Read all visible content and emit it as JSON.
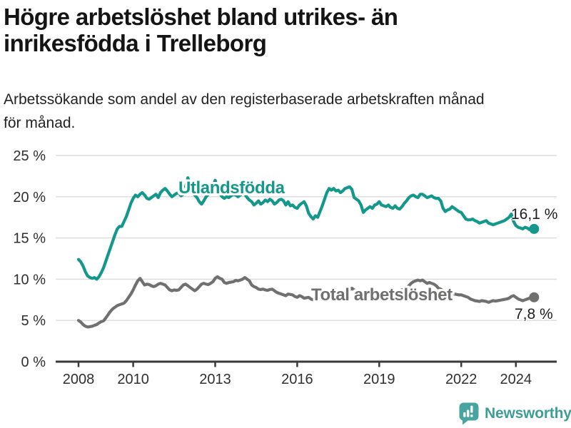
{
  "header": {
    "title_line1": "Högre arbetslöshet bland utrikes- än",
    "title_line2": "inrikesfödda i Trelleborg",
    "subtitle_line1": "Arbetssökande som andel av den registerbaserade arbetskraften månad",
    "subtitle_line2": "för månad."
  },
  "footer": {
    "brand_name": "Newsworthy"
  },
  "colors": {
    "teal": "#14988B",
    "gray": "#70706F",
    "grid": "#DBDBDB",
    "axis": "#3A3A3A",
    "tick_text": "#2F2F2F",
    "value_text": "#1D1D1D",
    "brand_teal": "#47A49F"
  },
  "chart_data": {
    "type": "line",
    "unit": "%",
    "grid": "horizontal",
    "legend": "inline-labels",
    "y_axis": {
      "range": [
        0,
        25
      ],
      "ticks": [
        {
          "value": 0,
          "label": "0 %"
        },
        {
          "value": 5,
          "label": "5 %"
        },
        {
          "value": 10,
          "label": "10 %"
        },
        {
          "value": 15,
          "label": "15 %"
        },
        {
          "value": 20,
          "label": "20 %"
        },
        {
          "value": 25,
          "label": "25 %"
        }
      ]
    },
    "x_axis": {
      "range": [
        2007.2,
        2025.5
      ],
      "ticks": [
        {
          "value": 2008,
          "label": "2008"
        },
        {
          "value": 2010,
          "label": "2010"
        },
        {
          "value": 2013,
          "label": "2013"
        },
        {
          "value": 2016,
          "label": "2016"
        },
        {
          "value": 2019,
          "label": "2019"
        },
        {
          "value": 2022,
          "label": "2022"
        },
        {
          "value": 2024,
          "label": "2024"
        }
      ]
    },
    "series": [
      {
        "name": "Utlandsfödda",
        "color": "#14988B",
        "end_value": 16.1,
        "end_label": "16,1 %",
        "start_year": 2008.0,
        "points_per_year": 12,
        "values": [
          12.4,
          12.1,
          11.6,
          10.9,
          10.4,
          10.2,
          10.1,
          10.2,
          10.0,
          10.3,
          10.8,
          11.4,
          12.2,
          13.0,
          13.8,
          14.6,
          15.4,
          16.1,
          16.4,
          16.4,
          17.0,
          17.6,
          18.4,
          19.2,
          19.8,
          20.2,
          20.0,
          20.3,
          20.5,
          20.2,
          19.8,
          19.7,
          19.9,
          20.1,
          20.3,
          19.9,
          20.5,
          20.8,
          21.0,
          20.7,
          20.3,
          20.0,
          20.2,
          20.4,
          20.5,
          20.1,
          20.3,
          21.2,
          22.3,
          21.4,
          20.6,
          20.2,
          19.9,
          19.4,
          19.1,
          19.5,
          20.0,
          20.3,
          20.6,
          21.3,
          22.0,
          21.2,
          20.4,
          20.0,
          19.8,
          20.0,
          19.9,
          20.1,
          20.3,
          20.2,
          20.0,
          20.2,
          20.4,
          20.3,
          19.9,
          19.6,
          19.4,
          19.0,
          19.2,
          19.5,
          19.1,
          19.3,
          19.6,
          19.4,
          19.7,
          19.5,
          19.1,
          19.3,
          19.6,
          19.7,
          19.5,
          19.0,
          19.4,
          18.9,
          19.0,
          18.7,
          18.6,
          19.0,
          19.2,
          19.4,
          18.9,
          18.0,
          17.6,
          17.3,
          17.7,
          17.5,
          18.2,
          18.9,
          19.7,
          20.5,
          21.0,
          20.8,
          21.0,
          20.7,
          20.8,
          20.5,
          20.7,
          21.0,
          21.1,
          21.2,
          20.9,
          19.9,
          19.7,
          19.5,
          19.0,
          18.1,
          18.4,
          18.6,
          18.8,
          18.6,
          19.0,
          19.1,
          19.4,
          19.0,
          18.9,
          18.8,
          19.0,
          18.7,
          18.6,
          18.9,
          18.6,
          18.5,
          18.8,
          19.2,
          19.5,
          19.9,
          20.1,
          20.2,
          20.0,
          19.9,
          20.3,
          20.3,
          20.1,
          19.9,
          20.0,
          20.1,
          19.9,
          19.8,
          19.8,
          19.5,
          18.6,
          18.2,
          18.4,
          18.5,
          18.8,
          18.6,
          18.4,
          18.2,
          18.1,
          17.7,
          17.3,
          17.2,
          17.2,
          17.3,
          17.1,
          17.0,
          16.8,
          16.9,
          17.0,
          17.1,
          16.8,
          16.7,
          16.6,
          16.7,
          16.8,
          16.9,
          17.0,
          17.1,
          17.3,
          17.5,
          17.9,
          17.0,
          16.5,
          16.3,
          16.2,
          16.1,
          16.3,
          16.2,
          16.0,
          16.05,
          16.1
        ]
      },
      {
        "name": "Total arbetslöshet",
        "color": "#70706F",
        "end_value": 7.8,
        "end_label": "7,8 %",
        "start_year": 2008.0,
        "points_per_year": 12,
        "values": [
          5.0,
          4.8,
          4.5,
          4.3,
          4.2,
          4.25,
          4.3,
          4.4,
          4.5,
          4.7,
          4.85,
          4.95,
          5.3,
          5.7,
          6.1,
          6.4,
          6.6,
          6.8,
          6.9,
          7.0,
          7.1,
          7.4,
          7.8,
          8.2,
          8.7,
          9.3,
          9.8,
          10.1,
          9.7,
          9.3,
          9.4,
          9.35,
          9.2,
          9.1,
          9.2,
          9.4,
          9.5,
          9.4,
          9.3,
          9.0,
          8.7,
          8.6,
          8.7,
          8.65,
          8.7,
          9.0,
          9.3,
          9.4,
          9.2,
          9.0,
          8.8,
          8.6,
          8.8,
          9.1,
          9.4,
          9.5,
          9.4,
          9.35,
          9.5,
          9.7,
          10.1,
          10.3,
          10.1,
          10.0,
          9.6,
          9.5,
          9.6,
          9.65,
          9.7,
          9.85,
          9.8,
          9.9,
          10.0,
          10.2,
          10.0,
          9.8,
          9.3,
          9.1,
          9.0,
          8.8,
          8.75,
          8.8,
          8.7,
          8.65,
          8.75,
          8.8,
          8.6,
          8.4,
          8.3,
          8.2,
          8.1,
          8.0,
          8.2,
          8.15,
          8.1,
          7.9,
          7.8,
          8.0,
          7.9,
          7.7,
          7.75,
          7.8,
          7.6,
          7.5,
          7.7,
          7.9,
          8.1,
          8.2,
          8.4,
          8.6,
          8.5,
          8.4,
          8.3,
          8.4,
          8.5,
          8.4,
          8.5,
          8.6,
          8.8,
          8.7,
          8.9,
          8.7,
          8.6,
          8.4,
          8.3,
          8.2,
          8.3,
          8.4,
          8.3,
          8.4,
          8.5,
          8.6,
          8.5,
          8.4,
          8.3,
          8.4,
          8.5,
          8.4,
          8.5,
          8.6,
          8.5,
          8.6,
          8.7,
          8.8,
          8.9,
          9.2,
          9.5,
          9.7,
          9.8,
          9.9,
          9.8,
          9.9,
          9.7,
          9.5,
          9.6,
          9.5,
          9.4,
          9.2,
          8.9,
          8.8,
          8.6,
          8.4,
          8.3,
          8.25,
          8.3,
          8.2,
          8.15,
          8.1,
          8.1,
          8.0,
          7.9,
          7.8,
          7.6,
          7.5,
          7.4,
          7.35,
          7.3,
          7.4,
          7.35,
          7.3,
          7.2,
          7.3,
          7.4,
          7.35,
          7.4,
          7.45,
          7.5,
          7.55,
          7.6,
          7.7,
          7.9,
          8.0,
          7.8,
          7.6,
          7.5,
          7.4,
          7.5,
          7.6,
          7.7,
          7.75,
          7.8
        ]
      }
    ]
  }
}
